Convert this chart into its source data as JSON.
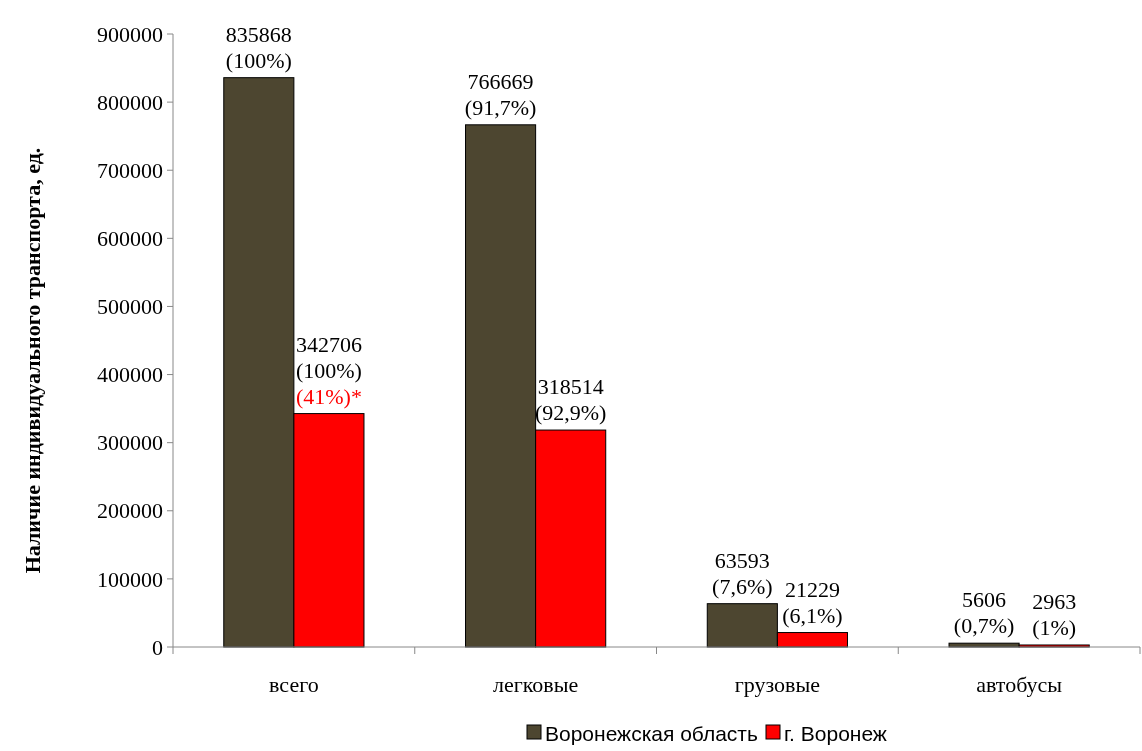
{
  "chart_data": {
    "type": "bar",
    "ylabel": "Наличие индивидуального транспорта, ед.",
    "categories": [
      "всего",
      "легковые",
      "грузовые",
      "автобусы"
    ],
    "series": [
      {
        "name": "Воронежская область",
        "color": "#4d4630",
        "values": [
          835868,
          766669,
          63593,
          5606
        ],
        "value_labels": [
          "835868\n(100%)",
          "766669\n(91,7%)",
          "63593\n(7,6%)",
          "5606\n(0,7%)"
        ]
      },
      {
        "name": "г. Воронеж",
        "color": "#ff0000",
        "values": [
          342706,
          318514,
          21229,
          2963
        ],
        "value_labels": [
          "342706\n(100%)\n(41%)*",
          "318514\n(92,9%)",
          "21229\n(6,1%)",
          "2963\n(1%)"
        ]
      }
    ],
    "ylim": [
      0,
      900000
    ],
    "yticks": [
      0,
      100000,
      200000,
      300000,
      400000,
      500000,
      600000,
      700000,
      800000,
      900000
    ],
    "grid": false,
    "legend": "bottom"
  }
}
